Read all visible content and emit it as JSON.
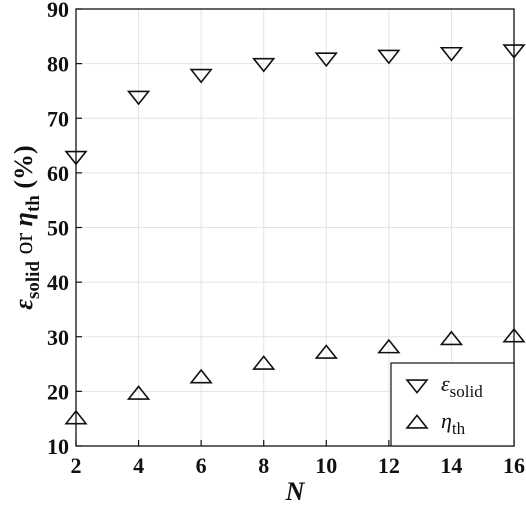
{
  "chart_data": {
    "type": "scatter",
    "x": [
      2,
      4,
      6,
      8,
      10,
      12,
      14,
      16
    ],
    "series": [
      {
        "key": "eps",
        "marker": "triangle-down",
        "values": [
          63,
          74,
          78,
          80,
          81,
          81.5,
          82,
          82.5
        ]
      },
      {
        "key": "eta",
        "marker": "triangle-up",
        "values": [
          15,
          19.5,
          22.5,
          25,
          27,
          28,
          29.5,
          30
        ]
      }
    ],
    "xlabel": "N",
    "ylabel": {
      "sym1": "ε",
      "sub1": "solid",
      "mid": " or ",
      "sym2": "η",
      "sub2": "th",
      "unit": " (%)"
    },
    "legend": [
      {
        "sym": "ε",
        "sub": "solid"
      },
      {
        "sym": "η",
        "sub": "th"
      }
    ],
    "xlim": [
      2,
      16
    ],
    "ylim": [
      10,
      90
    ],
    "xticks": [
      2,
      4,
      6,
      8,
      10,
      12,
      14,
      16
    ],
    "yticks": [
      10,
      20,
      30,
      40,
      50,
      60,
      70,
      80,
      90
    ],
    "grid": true,
    "legend_position": "bottom-right"
  }
}
